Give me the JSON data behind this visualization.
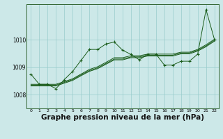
{
  "background_color": "#cce8e8",
  "grid_color": "#99cccc",
  "line_color": "#1a5c1a",
  "xlabel": "Graphe pression niveau de la mer (hPa)",
  "xlabel_fontsize": 7.5,
  "xlim": [
    -0.5,
    22.5
  ],
  "ylim": [
    1007.5,
    1011.3
  ],
  "yticks": [
    1008,
    1009,
    1010
  ],
  "xticks": [
    0,
    1,
    2,
    3,
    4,
    5,
    6,
    7,
    8,
    9,
    10,
    11,
    12,
    13,
    14,
    15,
    16,
    17,
    18,
    19,
    20,
    21,
    22
  ],
  "jagged_y": [
    1008.75,
    1008.38,
    1008.38,
    1008.22,
    1008.55,
    1008.85,
    1009.25,
    1009.65,
    1009.65,
    1009.85,
    1009.92,
    1009.62,
    1009.47,
    1009.27,
    1009.48,
    1009.48,
    1009.08,
    1009.08,
    1009.22,
    1009.22,
    1009.48,
    1011.1,
    1010.02
  ],
  "trend1_y": [
    1008.38,
    1008.38,
    1008.38,
    1008.38,
    1008.48,
    1008.58,
    1008.75,
    1008.92,
    1009.02,
    1009.18,
    1009.35,
    1009.35,
    1009.42,
    1009.42,
    1009.48,
    1009.48,
    1009.48,
    1009.48,
    1009.55,
    1009.55,
    1009.65,
    1009.82,
    1010.02
  ],
  "trend2_y": [
    1008.35,
    1008.35,
    1008.35,
    1008.35,
    1008.45,
    1008.55,
    1008.72,
    1008.88,
    1008.98,
    1009.14,
    1009.3,
    1009.3,
    1009.38,
    1009.38,
    1009.44,
    1009.44,
    1009.44,
    1009.44,
    1009.52,
    1009.52,
    1009.62,
    1009.78,
    1009.98
  ],
  "trend3_y": [
    1008.32,
    1008.32,
    1008.32,
    1008.32,
    1008.42,
    1008.52,
    1008.69,
    1008.85,
    1008.95,
    1009.11,
    1009.27,
    1009.27,
    1009.35,
    1009.35,
    1009.41,
    1009.41,
    1009.41,
    1009.41,
    1009.49,
    1009.49,
    1009.59,
    1009.75,
    1009.95
  ]
}
